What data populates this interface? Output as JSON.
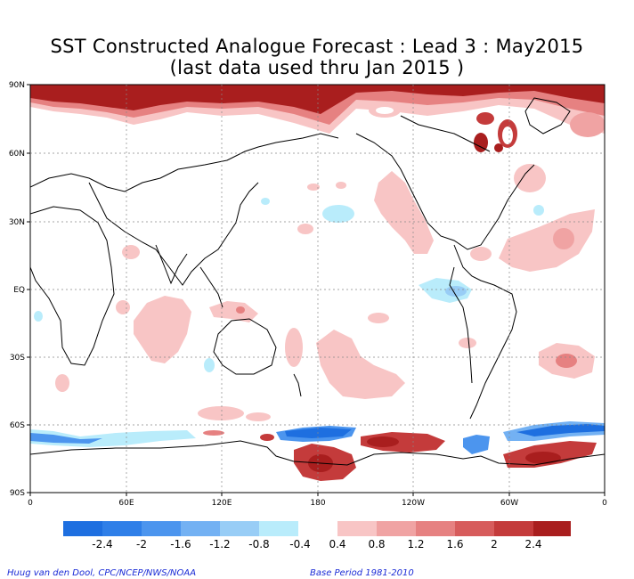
{
  "title": {
    "line1": "SST Constructed Analogue Forecast : Lead 3 : May2015",
    "line2": "(last data used thru Jan 2015 )"
  },
  "lat_labels": [
    "90N",
    "60N",
    "30N",
    "EQ",
    "30S",
    "60S",
    "90S"
  ],
  "lon_labels": [
    "0",
    "60E",
    "120E",
    "180",
    "120W",
    "60W",
    "0"
  ],
  "colorbar": {
    "labels": [
      "-2.4",
      "-2",
      "-1.6",
      "-1.2",
      "-0.8",
      "-0.4",
      "0.4",
      "0.8",
      "1.2",
      "1.6",
      "2",
      "2.4"
    ],
    "negative_colors": [
      "#1e6fe0",
      "#2f7fe8",
      "#4c95ee",
      "#73b1f3",
      "#98cdf6",
      "#b9ecfb"
    ],
    "positive_colors": [
      "#f8c5c5",
      "#f0a3a3",
      "#e68181",
      "#d75c5c",
      "#c43b3b",
      "#a91e1e"
    ]
  },
  "footer": {
    "left": "Huug van den Dool, CPC/NCEP/NWS/NOAA",
    "right": "Base Period 1981-2010"
  }
}
